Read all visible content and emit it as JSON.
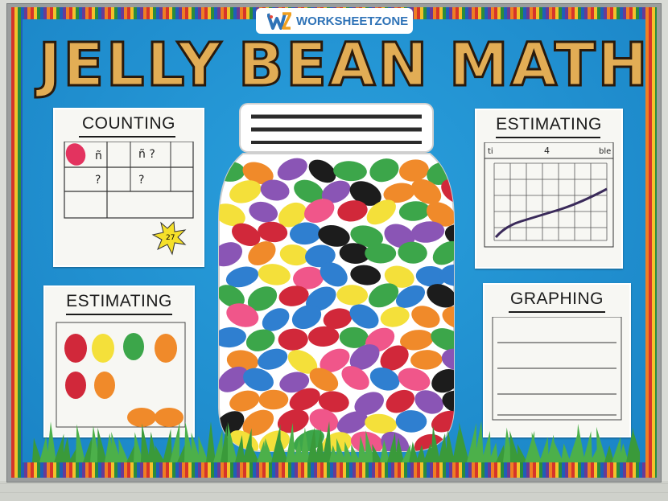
{
  "image": {
    "watermark": "WORKSHEETZONE",
    "title_words": [
      "JELLY",
      "BEAN",
      "MATH"
    ],
    "posters": {
      "counting": {
        "title": "COUNTING",
        "star_text": "27"
      },
      "estimating_top": {
        "title": "ESTIMATING",
        "graph_header": [
          "ti",
          "4",
          "ble"
        ]
      },
      "estimating_bottom": {
        "title": "ESTIMATING"
      },
      "graphing": {
        "title": "GRAPHING"
      }
    },
    "colors": {
      "board": "#1f8fd0",
      "title": "#e2ad55",
      "grass": "#3a9a3a",
      "bean_red": "#d1283a",
      "bean_yellow": "#f4e03a",
      "bean_orange": "#f08a2a",
      "bean_green": "#3ca64a",
      "bean_blue": "#2f7fd0",
      "bean_purple": "#8a55b5",
      "bean_pink": "#f0568a",
      "bean_black": "#1c1c1c"
    }
  }
}
